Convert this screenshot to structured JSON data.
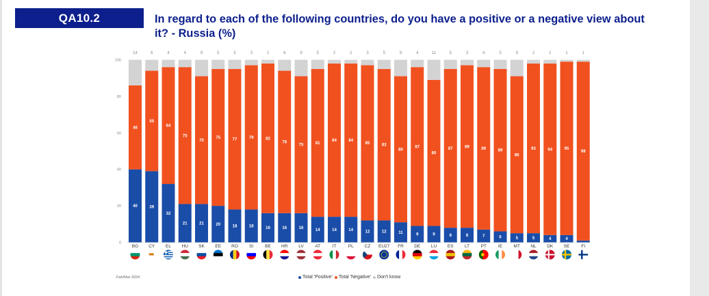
{
  "header": {
    "code": "QA10.2",
    "title": "In regard to each of the following countries, do you have a positive or a negative view about it? - Russia (%)"
  },
  "source_note": "Feb/Mar 2024",
  "colors": {
    "positive": "#1a4da8",
    "negative": "#f1511f",
    "dont_know": "#d3d3d3"
  },
  "legend": [
    {
      "label": "Total 'Positive'",
      "color": "#1a4da8"
    },
    {
      "label": "Total 'Negative'",
      "color": "#f1511f"
    },
    {
      "label": "Don't know",
      "color": "#c8c8c8"
    }
  ],
  "chart_data": {
    "type": "bar",
    "stacked": true,
    "title": "In regard to each of the following countries, do you have a positive or a negative view about it? - Russia (%)",
    "xlabel": "",
    "ylabel": "",
    "ylim": [
      0,
      100
    ],
    "yticks": [
      0,
      20,
      40,
      60,
      80,
      100
    ],
    "categories": [
      "BG",
      "CY",
      "EL",
      "HU",
      "SK",
      "EE",
      "RO",
      "SI",
      "BE",
      "HR",
      "LV",
      "AT",
      "IT",
      "PL",
      "CZ",
      "EU27",
      "FR",
      "DE",
      "LU",
      "ES",
      "LT",
      "PT",
      "IE",
      "MT",
      "NL",
      "DK",
      "SE",
      "FI"
    ],
    "series": [
      {
        "name": "Total 'Positive'",
        "values": [
          40,
          39,
          32,
          21,
          21,
          20,
          18,
          18,
          16,
          16,
          16,
          14,
          14,
          14,
          12,
          12,
          11,
          9,
          9,
          8,
          8,
          7,
          6,
          5,
          5,
          4,
          4,
          1
        ]
      },
      {
        "name": "Total 'Negative'",
        "values": [
          46,
          55,
          64,
          75,
          70,
          75,
          77,
          79,
          82,
          78,
          75,
          81,
          84,
          84,
          85,
          83,
          80,
          87,
          80,
          87,
          89,
          89,
          89,
          86,
          93,
          94,
          95,
          98
        ]
      },
      {
        "name": "Don't know",
        "values": [
          14,
          6,
          4,
          4,
          9,
          5,
          5,
          3,
          2,
          6,
          9,
          5,
          2,
          2,
          3,
          5,
          9,
          4,
          11,
          5,
          3,
          4,
          5,
          9,
          2,
          2,
          1,
          1
        ]
      }
    ],
    "data_labels_shown": {
      "positive": [
        40,
        39,
        32,
        21,
        21,
        20,
        18,
        18,
        16,
        16,
        16,
        14,
        14,
        14,
        12,
        12,
        11,
        9,
        9,
        8,
        8,
        7,
        6,
        5,
        5,
        4,
        4,
        ""
      ]
    },
    "flags": [
      "BG",
      "CY",
      "EL",
      "HU",
      "SK",
      "EE",
      "RO",
      "SI",
      "BE",
      "HR",
      "LV",
      "AT",
      "IT",
      "PL",
      "CZ",
      "EU27",
      "FR",
      "DE",
      "LU",
      "ES",
      "LT",
      "PT",
      "IE",
      "MT",
      "NL",
      "DK",
      "SE",
      "FI"
    ]
  }
}
